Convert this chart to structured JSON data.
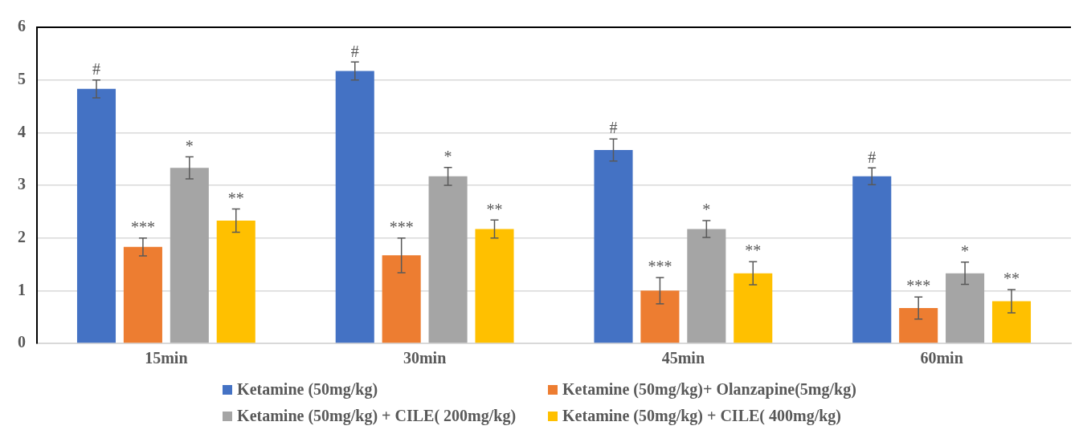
{
  "chart_data": {
    "type": "bar",
    "categories": [
      "15min",
      "30min",
      "45min",
      "60min"
    ],
    "series": [
      {
        "name": "Ketamine (50mg/kg)",
        "color": "#4472c4",
        "values": [
          4.83,
          5.17,
          3.67,
          3.17
        ],
        "errors": [
          0.17,
          0.17,
          0.21,
          0.16
        ],
        "value_labels": [
          "#",
          "#",
          "#",
          "#"
        ]
      },
      {
        "name": "Ketamine (50mg/kg)+ Olanzapine(5mg/kg)",
        "color": "#ed7d31",
        "values": [
          1.83,
          1.67,
          1.0,
          0.67
        ],
        "errors": [
          0.17,
          0.33,
          0.25,
          0.21
        ],
        "value_labels": [
          "***",
          "***",
          "***",
          "***"
        ]
      },
      {
        "name": "Ketamine (50mg/kg) + CILE( 200mg/kg)",
        "color": "#a5a5a5",
        "values": [
          3.33,
          3.17,
          2.17,
          1.33
        ],
        "errors": [
          0.21,
          0.17,
          0.16,
          0.21
        ],
        "value_labels": [
          "*",
          "*",
          "*",
          "*"
        ]
      },
      {
        "name": "Ketamine (50mg/kg) + CILE( 400mg/kg)",
        "color": "#ffc000",
        "values": [
          2.33,
          2.17,
          1.33,
          0.8
        ],
        "errors": [
          0.22,
          0.17,
          0.22,
          0.22
        ],
        "value_labels": [
          "**",
          "**",
          "**",
          "**"
        ]
      }
    ],
    "ylim": [
      0,
      6
    ],
    "yticks": [
      0,
      1,
      2,
      3,
      4,
      5,
      6
    ],
    "grid": "y",
    "legend": "bottom"
  }
}
